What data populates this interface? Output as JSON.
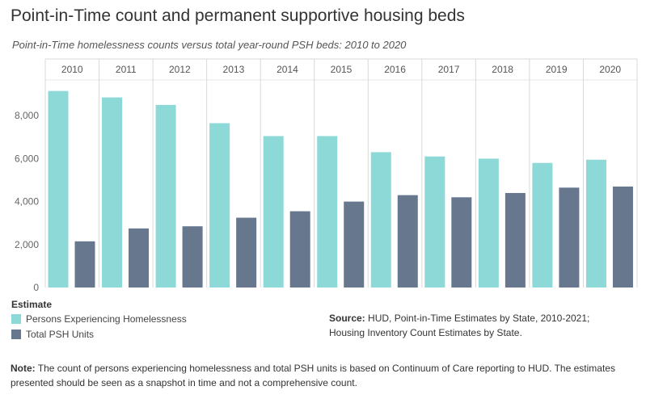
{
  "title": "Point-in-Time count and permanent supportive housing beds",
  "subtitle": "Point-in-Time homelessness counts versus total year-round PSH beds: 2010 to 2020",
  "legend": {
    "title": "Estimate",
    "items": [
      {
        "label": "Persons Experiencing Homelessness",
        "color": "#8dd9d7"
      },
      {
        "label": "Total PSH Units",
        "color": "#66778e"
      }
    ]
  },
  "source": {
    "label": "Source:",
    "line1": " HUD, Point-in-Time Estimates by State, 2010-2021;",
    "line2": "Housing Inventory Count Estimates by State."
  },
  "note": {
    "label": "Note:",
    "text": " The count of persons experiencing homelessness and total PSH units is based on Continuum of Care reporting to HUD. The estimates presented should be seen as a snapshot in time and not a comprehensive count."
  },
  "chart_data": {
    "type": "bar",
    "categories": [
      "2010",
      "2011",
      "2012",
      "2013",
      "2014",
      "2015",
      "2016",
      "2017",
      "2018",
      "2019",
      "2020"
    ],
    "series": [
      {
        "name": "Persons Experiencing Homelessness",
        "color": "#8dd9d7",
        "values": [
          9150,
          8850,
          8500,
          7650,
          7050,
          7050,
          6300,
          6100,
          6000,
          5800,
          5950
        ]
      },
      {
        "name": "Total PSH Units",
        "color": "#66778e",
        "values": [
          2150,
          2750,
          2850,
          3250,
          3550,
          4000,
          4300,
          4200,
          4400,
          4650,
          4700
        ]
      }
    ],
    "yticks": [
      "0",
      "2,000",
      "4,000",
      "6,000",
      "8,000"
    ],
    "ytick_values": [
      0,
      2000,
      4000,
      6000,
      8000
    ],
    "ylim": [
      0,
      9700
    ],
    "grid": false
  }
}
